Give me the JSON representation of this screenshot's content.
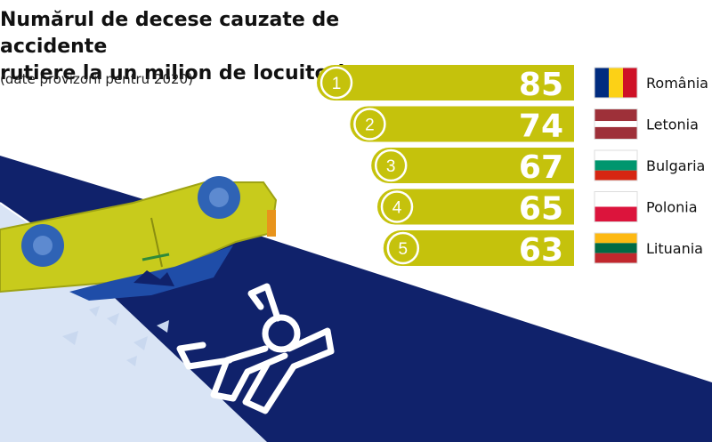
{
  "header": {
    "title_line1": "Numărul de decese cauzate de accidente",
    "title_line2": "rutiere la un milion de locuitori",
    "subtitle": "(date provizorii pentru 2020)"
  },
  "colors": {
    "bar": "#c5c20c",
    "bar_border": "#ffffff",
    "navy": "#10226b",
    "light_blue": "#d9e4f5",
    "car": "#c8cb1c",
    "wheel": "#2f63b5",
    "window": "#1f4da8"
  },
  "chart_data": {
    "type": "bar",
    "orientation": "horizontal",
    "title": "Numărul de decese cauzate de accidente rutiere la un milion de locuitori",
    "subtitle": "(date provizorii pentru 2020)",
    "ranks": [
      "1",
      "2",
      "3",
      "4",
      "5"
    ],
    "categories": [
      "România",
      "Letonia",
      "Bulgaria",
      "Polonia",
      "Lituania"
    ],
    "values": [
      85,
      74,
      67,
      65,
      63
    ],
    "flags": [
      [
        "#002B7F",
        "#FCD116",
        "#CE1126"
      ],
      [
        "#9E3039",
        "#FFFFFF",
        "#9E3039"
      ],
      [
        "#FFFFFF",
        "#00966E",
        "#D62612"
      ],
      [
        "#FFFFFF",
        "#DC143C"
      ],
      [
        "#FDB913",
        "#006A44",
        "#C1272D"
      ]
    ],
    "flag_orientation": [
      "vertical",
      "horizontal",
      "horizontal",
      "horizontal",
      "horizontal"
    ]
  }
}
